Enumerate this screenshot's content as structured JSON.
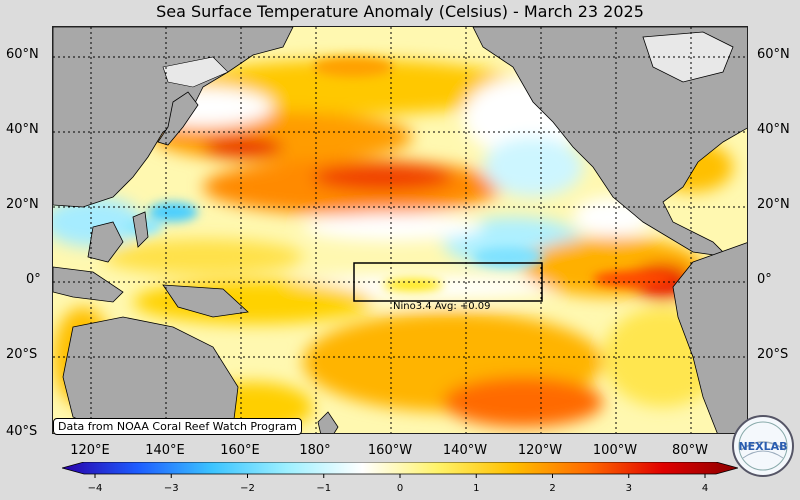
{
  "title": "Sea Surface Temperature Anomaly (Celsius) - March 23 2025",
  "credit": "Data from NOAA Coral Reef Watch Program",
  "nino_label": "Nino3.4 Avg: +0.09",
  "logo_text": "NEXLAB",
  "lat_labels": [
    "60°N",
    "40°N",
    "20°N",
    "0°",
    "20°S",
    "40°S"
  ],
  "lon_labels": [
    "120°E",
    "140°E",
    "160°E",
    "180°",
    "160°W",
    "140°W",
    "120°W",
    "100°W",
    "80°W"
  ],
  "colorbar": {
    "ticks": [
      "−4",
      "−3",
      "−2",
      "−1",
      "0",
      "1",
      "2",
      "3",
      "4"
    ],
    "range": [
      -4,
      4
    ],
    "colors": [
      "#2a00a8",
      "#1d5cff",
      "#3cc4ff",
      "#9ef0ff",
      "#ffffff",
      "#fff36a",
      "#ffbf00",
      "#ff6a00",
      "#e00000",
      "#8a0000"
    ]
  },
  "colors": {
    "land": "#a8a8a8",
    "background": "#dcdcdc"
  }
}
